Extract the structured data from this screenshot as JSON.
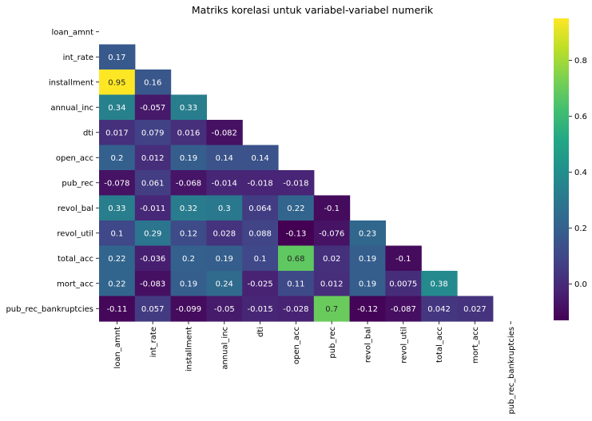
{
  "chart_data": {
    "type": "heatmap",
    "title": "Matriks korelasi untuk variabel-variabel numerik",
    "xlabel": "",
    "ylabel": "",
    "variables": [
      "loan_amnt",
      "int_rate",
      "installment",
      "annual_inc",
      "dti",
      "open_acc",
      "pub_rec",
      "revol_bal",
      "revol_util",
      "total_acc",
      "mort_acc",
      "pub_rec_bankruptcies"
    ],
    "mask": "upper-triangle-and-diagonal",
    "colormap": "viridis",
    "color_range": [
      -0.13,
      0.95
    ],
    "colorbar_ticks": [
      0.0,
      0.2,
      0.4,
      0.6,
      0.8
    ],
    "colorbar_tick_labels": [
      "0.0",
      "0.2",
      "0.4",
      "0.6",
      "0.8"
    ],
    "cells": [
      {
        "row": "int_rate",
        "values": [
          0.17
        ],
        "labels": [
          "0.17"
        ]
      },
      {
        "row": "installment",
        "values": [
          0.95,
          0.16
        ],
        "labels": [
          "0.95",
          "0.16"
        ]
      },
      {
        "row": "annual_inc",
        "values": [
          0.34,
          -0.057,
          0.33
        ],
        "labels": [
          "0.34",
          "-0.057",
          "0.33"
        ]
      },
      {
        "row": "dti",
        "values": [
          0.017,
          0.079,
          0.016,
          -0.082
        ],
        "labels": [
          "0.017",
          "0.079",
          "0.016",
          "-0.082"
        ]
      },
      {
        "row": "open_acc",
        "values": [
          0.2,
          0.012,
          0.19,
          0.14,
          0.14
        ],
        "labels": [
          "0.2",
          "0.012",
          "0.19",
          "0.14",
          "0.14"
        ]
      },
      {
        "row": "pub_rec",
        "values": [
          -0.078,
          0.061,
          -0.068,
          -0.014,
          -0.018,
          -0.018
        ],
        "labels": [
          "-0.078",
          "0.061",
          "-0.068",
          "-0.014",
          "-0.018",
          "-0.018"
        ]
      },
      {
        "row": "revol_bal",
        "values": [
          0.33,
          -0.011,
          0.32,
          0.3,
          0.064,
          0.22,
          -0.1
        ],
        "labels": [
          "0.33",
          "-0.011",
          "0.32",
          "0.3",
          "0.064",
          "0.22",
          "-0.1"
        ]
      },
      {
        "row": "revol_util",
        "values": [
          0.1,
          0.29,
          0.12,
          0.028,
          0.088,
          -0.13,
          -0.076,
          0.23
        ],
        "labels": [
          "0.1",
          "0.29",
          "0.12",
          "0.028",
          "0.088",
          "-0.13",
          "-0.076",
          "0.23"
        ]
      },
      {
        "row": "total_acc",
        "values": [
          0.22,
          -0.036,
          0.2,
          0.19,
          0.1,
          0.68,
          0.02,
          0.19,
          -0.1
        ],
        "labels": [
          "0.22",
          "-0.036",
          "0.2",
          "0.19",
          "0.1",
          "0.68",
          "0.02",
          "0.19",
          "-0.1"
        ]
      },
      {
        "row": "mort_acc",
        "values": [
          0.22,
          -0.083,
          0.19,
          0.24,
          -0.025,
          0.11,
          0.012,
          0.19,
          0.0075,
          0.38
        ],
        "labels": [
          "0.22",
          "-0.083",
          "0.19",
          "0.24",
          "-0.025",
          "0.11",
          "0.012",
          "0.19",
          "0.0075",
          "0.38"
        ]
      },
      {
        "row": "pub_rec_bankruptcies",
        "values": [
          -0.11,
          0.057,
          -0.099,
          -0.05,
          -0.015,
          -0.028,
          0.7,
          -0.12,
          -0.087,
          0.042,
          0.027
        ],
        "labels": [
          "-0.11",
          "0.057",
          "-0.099",
          "-0.05",
          "-0.015",
          "-0.028",
          "0.7",
          "-0.12",
          "-0.087",
          "0.042",
          "0.027"
        ]
      }
    ]
  }
}
